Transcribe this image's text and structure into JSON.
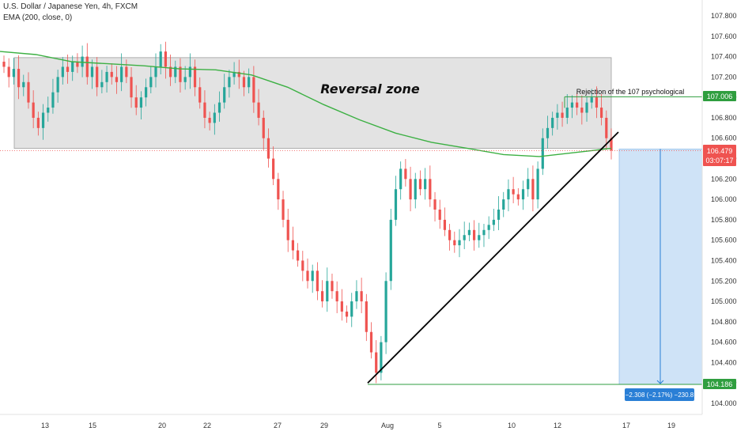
{
  "header": {
    "symbol_line": "U.S. Dollar / Japanese Yen, 4h, FXCM",
    "indicator_line": "EMA (200, close, 0)"
  },
  "annotations": {
    "zone_label": "Reversal zone",
    "rejection_label": "Rejection of the 107 psychological",
    "measure_label": "−2.308 (−2.17%) −230.8"
  },
  "price_tags": {
    "level_107": "107.006",
    "current_price": "106.479",
    "countdown": "03:07:17",
    "target": "104.186"
  },
  "colors": {
    "up": "#26a69a",
    "down": "#ef5350",
    "ema": "#3cb043",
    "zone_fill": "#e3e3e3",
    "measure_fill": "#cfe3f7",
    "trendline": "#000000",
    "level_line": "#2f9e3f",
    "current_tag": "#ef5350",
    "target_tag": "#2f9e3f",
    "measure_tag": "#2a7fd6"
  },
  "chart_data": {
    "type": "candlestick",
    "y_axis": {
      "ticks": [
        "107.800",
        "107.600",
        "107.400",
        "107.200",
        "107.000",
        "106.800",
        "106.600",
        "106.400",
        "106.200",
        "106.000",
        "105.800",
        "105.600",
        "105.400",
        "105.200",
        "105.000",
        "104.800",
        "104.600",
        "104.400",
        "104.200",
        "104.000"
      ],
      "range": [
        103.88,
        107.95
      ]
    },
    "x_axis": {
      "ticks": [
        "13",
        "15",
        "20",
        "22",
        "27",
        "29",
        "Aug",
        "5",
        "10",
        "12",
        "17",
        "19"
      ]
    },
    "reversal_zone": [
      106.5,
      107.39
    ],
    "level_107": 107.006,
    "current_price": 106.479,
    "target": 104.186,
    "measure": {
      "from": 106.494,
      "to": 104.186,
      "change": -2.308,
      "percent": -2.17,
      "pips": -230.8
    },
    "ema200_path": [
      107.45,
      107.42,
      107.35,
      107.33,
      107.31,
      107.28,
      107.27,
      107.22,
      107.1,
      106.93,
      106.78,
      106.65,
      106.56,
      106.5,
      106.44,
      106.42,
      106.46,
      106.5
    ],
    "trendline": {
      "from": 104.2,
      "to": 106.66
    },
    "candle_closes": [
      107.3,
      107.2,
      107.28,
      107.1,
      107.15,
      106.95,
      106.8,
      106.7,
      106.85,
      106.9,
      107.05,
      107.2,
      107.3,
      107.25,
      107.35,
      107.3,
      107.4,
      107.2,
      107.3,
      107.1,
      107.15,
      107.25,
      107.2,
      107.15,
      107.3,
      107.2,
      107.0,
      106.9,
      107.0,
      107.1,
      107.2,
      107.3,
      107.45,
      107.3,
      107.2,
      107.3,
      107.15,
      107.2,
      107.3,
      107.1,
      106.95,
      106.8,
      106.75,
      106.85,
      106.95,
      107.1,
      107.2,
      107.25,
      107.2,
      107.1,
      107.2,
      106.95,
      106.8,
      106.6,
      106.4,
      106.2,
      106.0,
      105.8,
      105.6,
      105.5,
      105.4,
      105.3,
      105.2,
      105.3,
      105.1,
      105.0,
      105.2,
      105.1,
      105.0,
      104.9,
      104.85,
      105.0,
      105.1,
      105.0,
      104.7,
      104.5,
      104.3,
      104.6,
      105.2,
      105.8,
      106.1,
      106.3,
      106.2,
      106.0,
      106.2,
      106.1,
      106.2,
      106.0,
      105.9,
      105.8,
      105.7,
      105.6,
      105.55,
      105.6,
      105.65,
      105.7,
      105.6,
      105.65,
      105.7,
      105.75,
      105.8,
      105.9,
      106.0,
      106.1,
      106.05,
      106.0,
      106.1,
      106.2,
      106.0,
      106.3,
      106.6,
      106.7,
      106.8,
      106.85,
      106.8,
      106.9,
      106.95,
      106.9,
      106.85,
      106.95,
      107.0,
      106.9,
      106.8,
      106.6,
      106.479
    ]
  }
}
